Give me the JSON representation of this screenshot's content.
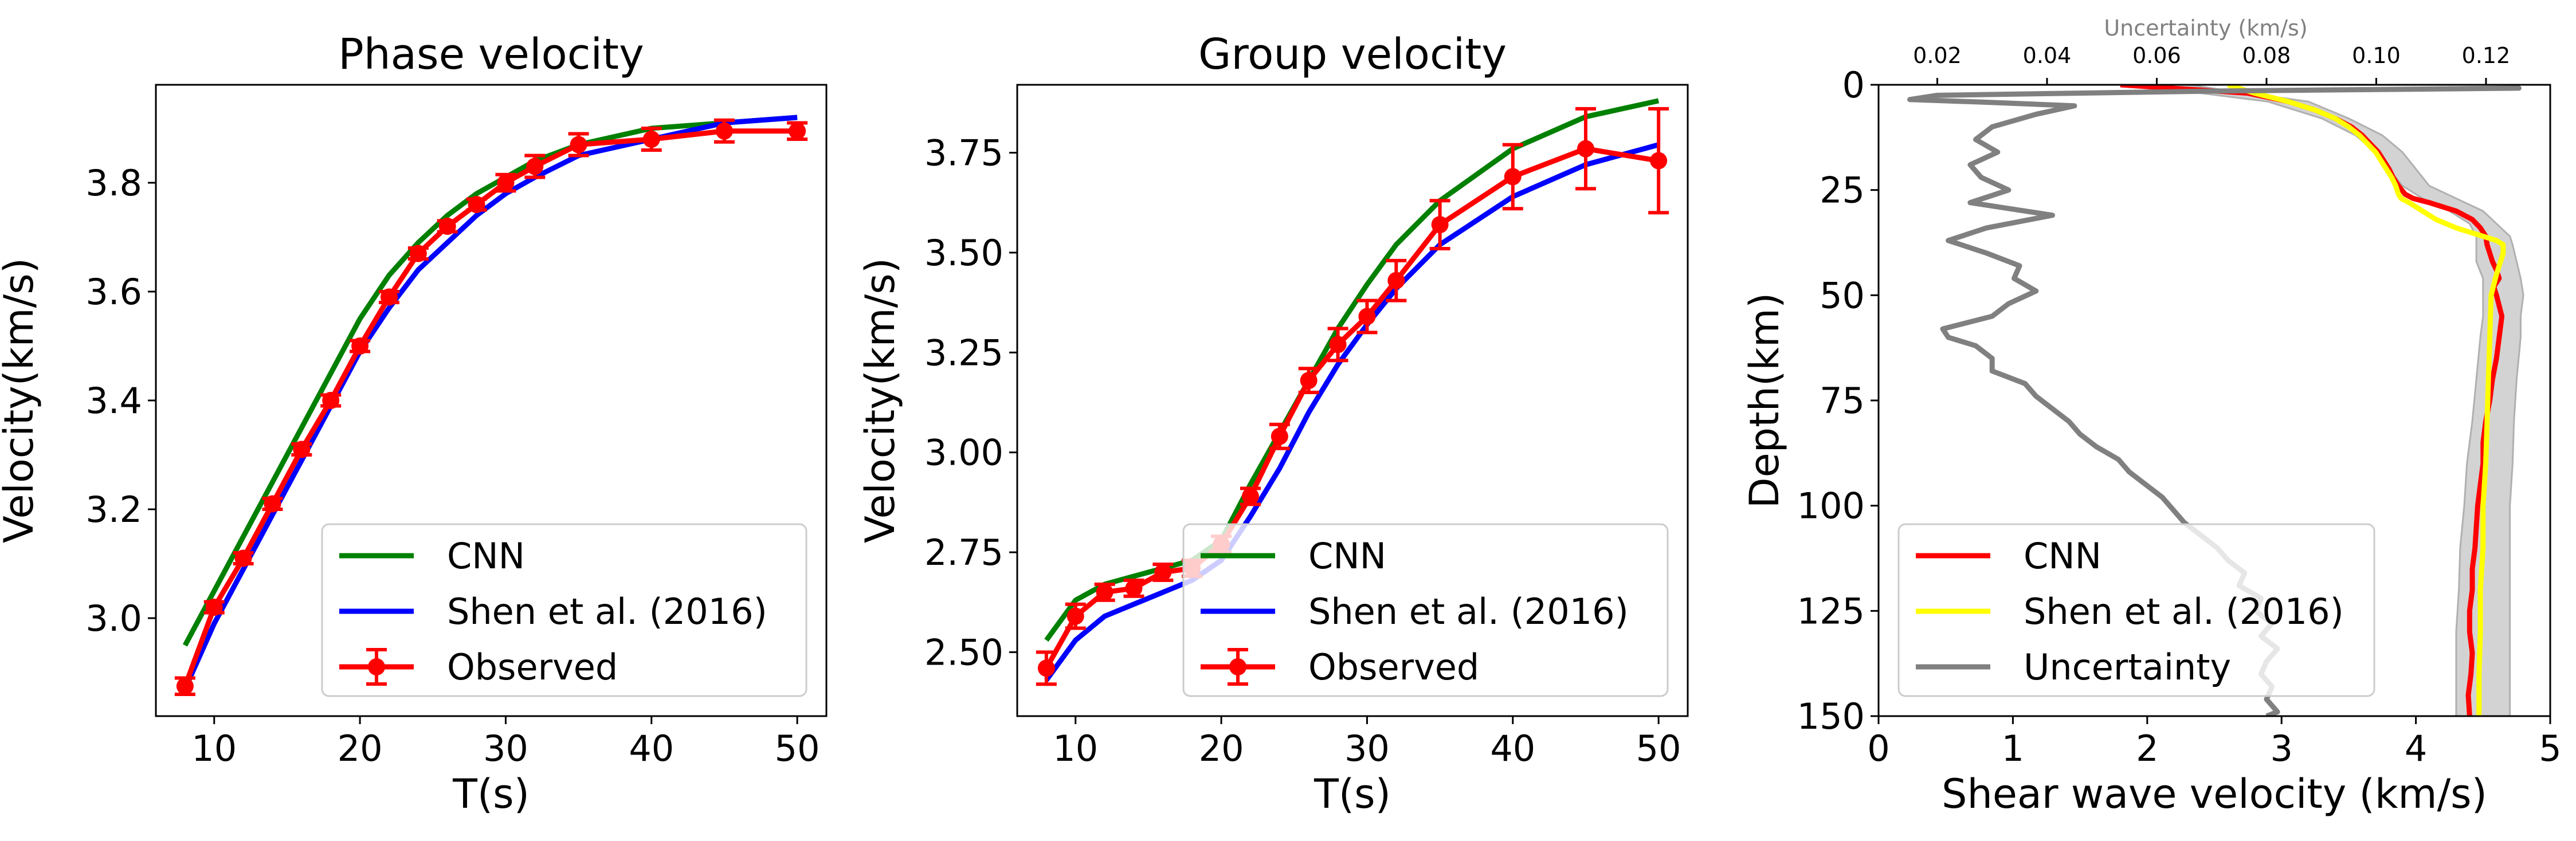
{
  "chart_data": [
    {
      "type": "line",
      "title": "Phase velocity",
      "xlabel": "T(s)",
      "ylabel": "Velocity(km/s)",
      "xlim": [
        6,
        52
      ],
      "ylim": [
        2.82,
        3.98
      ],
      "xticks": [
        10,
        20,
        30,
        40,
        50
      ],
      "yticks": [
        3.0,
        3.2,
        3.4,
        3.6,
        3.8
      ],
      "ytick_decimals": 1,
      "legend": "lower-right",
      "series": [
        {
          "name": "CNN",
          "color": "#008000",
          "x": [
            8,
            10,
            12,
            14,
            16,
            18,
            20,
            22,
            24,
            26,
            28,
            30,
            32,
            35,
            40,
            45,
            50
          ],
          "y": [
            2.95,
            3.05,
            3.15,
            3.25,
            3.35,
            3.45,
            3.55,
            3.63,
            3.69,
            3.74,
            3.78,
            3.81,
            3.84,
            3.87,
            3.9,
            3.91,
            3.92
          ]
        },
        {
          "name": "Shen et al. (2016)",
          "color": "#0000ff",
          "x": [
            8,
            10,
            12,
            14,
            16,
            18,
            20,
            22,
            24,
            26,
            28,
            30,
            32,
            35,
            40,
            45,
            50
          ],
          "y": [
            2.87,
            2.99,
            3.09,
            3.19,
            3.29,
            3.39,
            3.49,
            3.57,
            3.64,
            3.69,
            3.74,
            3.78,
            3.81,
            3.85,
            3.88,
            3.91,
            3.92
          ]
        },
        {
          "name": "Observed",
          "color": "#ff0000",
          "marker": true,
          "x": [
            8,
            10,
            12,
            14,
            16,
            18,
            20,
            22,
            24,
            26,
            28,
            30,
            32,
            35,
            40,
            45,
            50
          ],
          "y": [
            2.875,
            3.02,
            3.11,
            3.21,
            3.31,
            3.4,
            3.5,
            3.59,
            3.67,
            3.72,
            3.76,
            3.8,
            3.83,
            3.87,
            3.88,
            3.895,
            3.895
          ],
          "err": [
            0.015,
            0.01,
            0.01,
            0.01,
            0.01,
            0.01,
            0.01,
            0.01,
            0.01,
            0.01,
            0.01,
            0.015,
            0.02,
            0.02,
            0.02,
            0.02,
            0.015
          ]
        }
      ]
    },
    {
      "type": "line",
      "title": "Group velocity",
      "xlabel": "T(s)",
      "ylabel": "Velocity(km/s)",
      "xlim": [
        6,
        52
      ],
      "ylim": [
        2.34,
        3.92
      ],
      "xticks": [
        10,
        20,
        30,
        40,
        50
      ],
      "yticks": [
        2.5,
        2.75,
        3.0,
        3.25,
        3.5,
        3.75
      ],
      "ytick_decimals": 2,
      "legend": "lower-right",
      "series": [
        {
          "name": "CNN",
          "color": "#008000",
          "x": [
            8,
            10,
            12,
            14,
            16,
            18,
            20,
            22,
            24,
            26,
            28,
            30,
            32,
            35,
            40,
            45,
            50
          ],
          "y": [
            2.53,
            2.63,
            2.67,
            2.69,
            2.71,
            2.73,
            2.78,
            2.92,
            3.05,
            3.18,
            3.31,
            3.42,
            3.52,
            3.63,
            3.76,
            3.84,
            3.88
          ]
        },
        {
          "name": "Shen et al. (2016)",
          "color": "#0000ff",
          "x": [
            8,
            10,
            12,
            14,
            16,
            18,
            20,
            22,
            24,
            26,
            28,
            30,
            32,
            35,
            40,
            45,
            50
          ],
          "y": [
            2.43,
            2.53,
            2.59,
            2.62,
            2.65,
            2.68,
            2.73,
            2.84,
            2.96,
            3.1,
            3.22,
            3.32,
            3.41,
            3.52,
            3.64,
            3.72,
            3.77
          ]
        },
        {
          "name": "Observed",
          "color": "#ff0000",
          "marker": true,
          "x": [
            8,
            10,
            12,
            14,
            16,
            18,
            20,
            22,
            24,
            26,
            28,
            30,
            32,
            35,
            40,
            45,
            50
          ],
          "y": [
            2.46,
            2.59,
            2.65,
            2.66,
            2.7,
            2.71,
            2.77,
            2.89,
            3.04,
            3.18,
            3.27,
            3.34,
            3.43,
            3.57,
            3.69,
            3.76,
            3.73
          ],
          "err": [
            0.04,
            0.03,
            0.02,
            0.02,
            0.02,
            0.02,
            0.02,
            0.02,
            0.03,
            0.03,
            0.04,
            0.04,
            0.05,
            0.06,
            0.08,
            0.1,
            0.13
          ]
        }
      ]
    },
    {
      "type": "line",
      "title": "",
      "xlabel": "Shear wave velocity (km/s)",
      "ylabel": "Depth(km)",
      "xlabel_top": "Uncertainty (km/s)",
      "xlim": [
        0,
        5
      ],
      "ylim": [
        150,
        0
      ],
      "y_inverted": true,
      "xticks": [
        0,
        1,
        2,
        3,
        4,
        5
      ],
      "yticks": [
        0,
        25,
        50,
        75,
        100,
        125,
        150
      ],
      "xlim_top": [
        0.0093,
        0.1317
      ],
      "xticks_top": [
        0.02,
        0.04,
        0.06,
        0.08,
        0.1,
        0.12
      ],
      "legend": "lower-left",
      "band": {
        "color": "#d3d3d3",
        "depth": [
          0,
          4,
          8,
          12,
          16,
          20,
          24,
          27,
          30,
          33,
          36,
          38,
          42,
          46,
          50,
          55,
          60,
          70,
          80,
          90,
          100,
          110,
          120,
          130,
          140,
          150
        ],
        "low": [
          1.9,
          2.9,
          3.3,
          3.55,
          3.7,
          3.8,
          3.9,
          4.05,
          4.25,
          4.4,
          4.45,
          4.45,
          4.45,
          4.5,
          4.5,
          4.5,
          4.48,
          4.45,
          4.42,
          4.38,
          4.36,
          4.33,
          4.32,
          4.3,
          4.3,
          4.3
        ],
        "high": [
          2.3,
          3.2,
          3.5,
          3.75,
          3.9,
          4.0,
          4.1,
          4.3,
          4.5,
          4.6,
          4.7,
          4.72,
          4.75,
          4.78,
          4.8,
          4.78,
          4.78,
          4.75,
          4.73,
          4.72,
          4.7,
          4.7,
          4.7,
          4.7,
          4.7,
          4.7
        ]
      },
      "series": [
        {
          "name": "CNN",
          "color": "#ff0000",
          "depth": [
            0,
            2,
            4,
            6,
            8,
            10,
            12,
            14,
            16,
            18,
            20,
            22,
            24,
            26,
            27,
            28,
            30,
            32,
            34,
            36,
            38,
            40,
            42,
            44,
            46,
            48,
            50,
            55,
            60,
            65,
            70,
            75,
            80,
            85,
            90,
            95,
            100,
            105,
            110,
            115,
            120,
            125,
            130,
            135,
            140,
            145,
            150
          ],
          "vs": [
            1.8,
            2.75,
            3.05,
            3.25,
            3.4,
            3.52,
            3.6,
            3.66,
            3.72,
            3.76,
            3.8,
            3.83,
            3.87,
            3.92,
            3.98,
            4.1,
            4.3,
            4.42,
            4.48,
            4.52,
            4.53,
            4.55,
            4.57,
            4.6,
            4.62,
            4.58,
            4.6,
            4.64,
            4.62,
            4.6,
            4.57,
            4.55,
            4.52,
            4.5,
            4.5,
            4.48,
            4.46,
            4.45,
            4.44,
            4.42,
            4.42,
            4.4,
            4.4,
            4.42,
            4.41,
            4.39,
            4.4
          ]
        },
        {
          "name": "Shen et al. (2016)",
          "color": "#ffff00",
          "depth": [
            0,
            2,
            4,
            6,
            8,
            10,
            12,
            14,
            16,
            18,
            20,
            22,
            24,
            26,
            27,
            28,
            29,
            30,
            32,
            34,
            36,
            37,
            38,
            40,
            45,
            50,
            60,
            70,
            80,
            90,
            100,
            110,
            120,
            130,
            140,
            150
          ],
          "vs": [
            2.6,
            2.8,
            3.05,
            3.25,
            3.4,
            3.5,
            3.58,
            3.64,
            3.7,
            3.74,
            3.78,
            3.82,
            3.85,
            3.87,
            3.89,
            3.95,
            4.0,
            4.05,
            4.15,
            4.3,
            4.5,
            4.6,
            4.65,
            4.65,
            4.6,
            4.56,
            4.55,
            4.54,
            4.53,
            4.52,
            4.5,
            4.5,
            4.48,
            4.48,
            4.47,
            4.47
          ]
        },
        {
          "name": "Uncertainty",
          "color": "#808080",
          "axis": "top",
          "depth": [
            0,
            0.8,
            1.5,
            2.5,
            3.5,
            4.2,
            5,
            7,
            10,
            13,
            16,
            19,
            22,
            25,
            28,
            31,
            34,
            37,
            40,
            43,
            46,
            49,
            52,
            55,
            58,
            60,
            62,
            65,
            68,
            71,
            74,
            77,
            80,
            83,
            86,
            89,
            92,
            95,
            98,
            101,
            104,
            107,
            110,
            113,
            116,
            119,
            122,
            125,
            128,
            131,
            134,
            137,
            140,
            143,
            146,
            149,
            150
          ],
          "unc": [
            0.125,
            0.126,
            0.07,
            0.02,
            0.015,
            0.03,
            0.045,
            0.038,
            0.03,
            0.027,
            0.031,
            0.026,
            0.028,
            0.033,
            0.026,
            0.041,
            0.029,
            0.022,
            0.029,
            0.035,
            0.034,
            0.038,
            0.033,
            0.03,
            0.021,
            0.022,
            0.027,
            0.03,
            0.03,
            0.036,
            0.038,
            0.041,
            0.044,
            0.046,
            0.049,
            0.053,
            0.055,
            0.058,
            0.061,
            0.063,
            0.065,
            0.068,
            0.071,
            0.073,
            0.076,
            0.075,
            0.079,
            0.078,
            0.081,
            0.079,
            0.082,
            0.08,
            0.079,
            0.081,
            0.08,
            0.082,
            0.08
          ]
        }
      ]
    }
  ]
}
